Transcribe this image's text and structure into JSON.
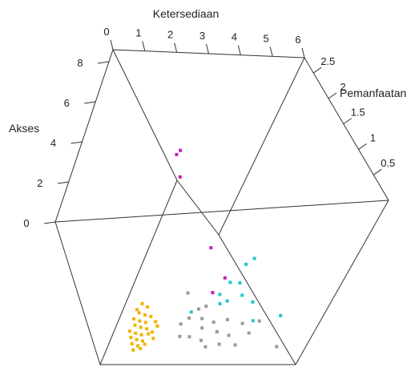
{
  "chart_data": {
    "type": "scatter",
    "projection": "3d",
    "title": "",
    "axes": {
      "x": {
        "label": "Ketersediaan",
        "ticks": [
          "0",
          "1",
          "2",
          "3",
          "4",
          "5",
          "6"
        ]
      },
      "y": {
        "label": "Pemanfaatan",
        "ticks": [
          "0.5",
          "1",
          "1.5",
          "2",
          "2.5"
        ]
      },
      "z": {
        "label": "Akses",
        "ticks": [
          "0",
          "2",
          "4",
          "6",
          "8"
        ]
      }
    },
    "grid": false,
    "legend": "none",
    "series": [
      {
        "color": "#c020c0",
        "points": [
          {
            "x": 2.2,
            "y": 1.8,
            "z": 6.5
          },
          {
            "x": 1.2,
            "y": 2.3,
            "z": 4.0
          },
          {
            "x": 0.8,
            "y": 2.4,
            "z": 2.0
          },
          {
            "x": 2.3,
            "y": 1.4,
            "z": 1.5
          },
          {
            "x": 2.6,
            "y": 1.2,
            "z": 0.3
          },
          {
            "x": 2.3,
            "y": 1.0,
            "z": 0.1
          }
        ]
      },
      {
        "color": "#20c8d0",
        "points": [
          {
            "x": 3.2,
            "y": 1.6,
            "z": 0.0
          },
          {
            "x": 3.0,
            "y": 1.5,
            "z": 0.0
          },
          {
            "x": 2.7,
            "y": 1.2,
            "z": 0.0
          },
          {
            "x": 3.0,
            "y": 1.2,
            "z": 0.0
          },
          {
            "x": 3.2,
            "y": 1.0,
            "z": 0.0
          },
          {
            "x": 2.5,
            "y": 1.0,
            "z": 0.0
          },
          {
            "x": 2.8,
            "y": 0.9,
            "z": 0.0
          },
          {
            "x": 2.6,
            "y": 0.85,
            "z": 0.0
          },
          {
            "x": 3.6,
            "y": 0.9,
            "z": 0.0
          },
          {
            "x": 3.8,
            "y": 0.6,
            "z": 0.0
          },
          {
            "x": 4.6,
            "y": 0.7,
            "z": 0.0
          },
          {
            "x": 1.8,
            "y": 0.7,
            "z": 0.0
          }
        ]
      },
      {
        "color": "#999999",
        "points": [
          {
            "x": 1.5,
            "y": 1.0,
            "z": 0.0
          },
          {
            "x": 2.2,
            "y": 0.8,
            "z": 0.0
          },
          {
            "x": 2.0,
            "y": 0.75,
            "z": 0.0
          },
          {
            "x": 1.8,
            "y": 0.6,
            "z": 0.0
          },
          {
            "x": 2.2,
            "y": 0.6,
            "z": 0.0
          },
          {
            "x": 2.6,
            "y": 0.55,
            "z": 0.0
          },
          {
            "x": 3.0,
            "y": 0.6,
            "z": 0.0
          },
          {
            "x": 3.5,
            "y": 0.55,
            "z": 0.0
          },
          {
            "x": 4.0,
            "y": 0.6,
            "z": 0.0
          },
          {
            "x": 1.6,
            "y": 0.5,
            "z": 0.0
          },
          {
            "x": 2.3,
            "y": 0.45,
            "z": 0.0
          },
          {
            "x": 2.8,
            "y": 0.4,
            "z": 0.0
          },
          {
            "x": 3.2,
            "y": 0.35,
            "z": 0.0
          },
          {
            "x": 3.8,
            "y": 0.4,
            "z": 0.0
          },
          {
            "x": 1.7,
            "y": 0.3,
            "z": 0.0
          },
          {
            "x": 2.4,
            "y": 0.25,
            "z": 0.0
          },
          {
            "x": 3.0,
            "y": 0.2,
            "z": 0.0
          },
          {
            "x": 3.5,
            "y": 0.2,
            "z": 0.0
          },
          {
            "x": 4.8,
            "y": 0.2,
            "z": 0.0
          },
          {
            "x": 2.6,
            "y": 0.15,
            "z": 0.0
          },
          {
            "x": 2.0,
            "y": 0.3,
            "z": 0.0
          }
        ]
      },
      {
        "color": "#f0b400",
        "points": [
          {
            "x": 0.2,
            "y": 0.8,
            "z": 0.0
          },
          {
            "x": 0.4,
            "y": 0.75,
            "z": 0.0
          },
          {
            "x": 0.2,
            "y": 0.65,
            "z": 0.0
          },
          {
            "x": 0.4,
            "y": 0.62,
            "z": 0.0
          },
          {
            "x": 0.6,
            "y": 0.6,
            "z": 0.0
          },
          {
            "x": 0.1,
            "y": 0.55,
            "z": 0.0
          },
          {
            "x": 0.3,
            "y": 0.52,
            "z": 0.0
          },
          {
            "x": 0.5,
            "y": 0.5,
            "z": 0.0
          },
          {
            "x": 0.8,
            "y": 0.52,
            "z": 0.0
          },
          {
            "x": 0.2,
            "y": 0.45,
            "z": 0.0
          },
          {
            "x": 0.4,
            "y": 0.42,
            "z": 0.0
          },
          {
            "x": 0.6,
            "y": 0.4,
            "z": 0.0
          },
          {
            "x": 0.9,
            "y": 0.45,
            "z": 0.0
          },
          {
            "x": 0.1,
            "y": 0.35,
            "z": 0.0
          },
          {
            "x": 0.3,
            "y": 0.32,
            "z": 0.0
          },
          {
            "x": 0.5,
            "y": 0.3,
            "z": 0.0
          },
          {
            "x": 0.7,
            "y": 0.32,
            "z": 0.0
          },
          {
            "x": 0.2,
            "y": 0.25,
            "z": 0.0
          },
          {
            "x": 0.4,
            "y": 0.22,
            "z": 0.0
          },
          {
            "x": 0.6,
            "y": 0.2,
            "z": 0.0
          },
          {
            "x": 0.3,
            "y": 0.15,
            "z": 0.0
          },
          {
            "x": 0.5,
            "y": 0.12,
            "z": 0.0
          },
          {
            "x": 0.7,
            "y": 0.15,
            "z": 0.0
          },
          {
            "x": 0.4,
            "y": 0.05,
            "z": 0.0
          },
          {
            "x": 0.6,
            "y": 0.08,
            "z": 0.0
          },
          {
            "x": 0.9,
            "y": 0.25,
            "z": 0.0
          },
          {
            "x": 0.1,
            "y": 0.7,
            "z": 0.0
          },
          {
            "x": 0.8,
            "y": 0.35,
            "z": 0.0
          }
        ]
      }
    ]
  }
}
